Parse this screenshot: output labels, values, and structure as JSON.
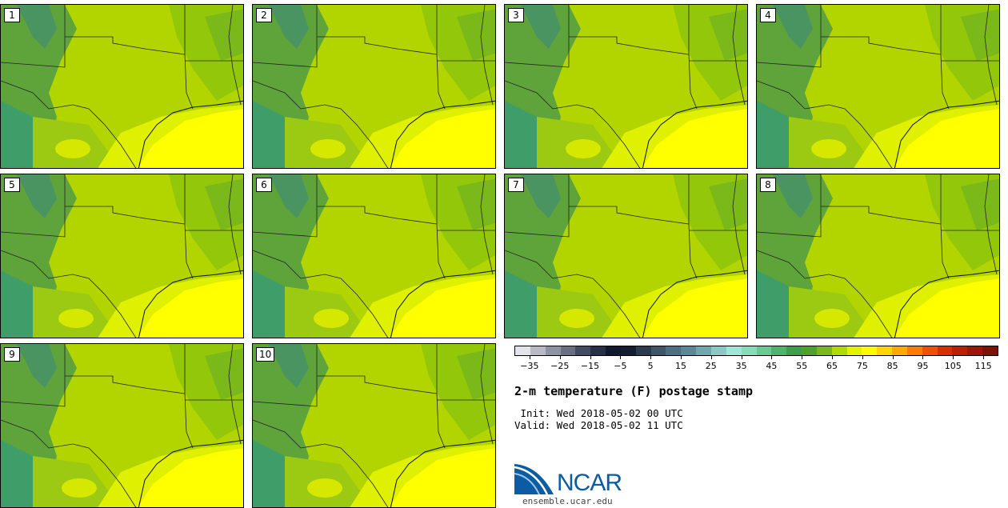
{
  "panels": [
    {
      "label": "1"
    },
    {
      "label": "2"
    },
    {
      "label": "3"
    },
    {
      "label": "4"
    },
    {
      "label": "5"
    },
    {
      "label": "6"
    },
    {
      "label": "7"
    },
    {
      "label": "8"
    },
    {
      "label": "9"
    },
    {
      "label": "10"
    }
  ],
  "colorbar": {
    "colors": [
      "#e3e3ea",
      "#b7b9c4",
      "#8e93a3",
      "#6a7084",
      "#434b63",
      "#273049",
      "#10192f",
      "#141e33",
      "#2a3b50",
      "#3d566a",
      "#4d6e80",
      "#5c8796",
      "#70a7ae",
      "#8cc8c5",
      "#9ee6d8",
      "#87dbb9",
      "#6ac993",
      "#4fb26d",
      "#3f9d4a",
      "#4fa12d",
      "#7ab817",
      "#b1d904",
      "#e4f101",
      "#fffb00",
      "#ffd400",
      "#ffaa00",
      "#ff7a00",
      "#f25000",
      "#db2e00",
      "#bf1d06",
      "#9e1509",
      "#7c1309"
    ],
    "tick_labels": [
      "−35",
      "−25",
      "−15",
      "−5",
      "5",
      "15",
      "25",
      "35",
      "45",
      "55",
      "65",
      "75",
      "85",
      "95",
      "105",
      "115"
    ],
    "min": -40,
    "max": 120
  },
  "title": "2-m temperature (F) postage stamp",
  "init": " Init: Wed 2018-05-02 00 UTC",
  "valid": "Valid: Wed 2018-05-02 11 UTC",
  "logo": {
    "text": "NCAR",
    "url": "ensemble.ucar.edu"
  }
}
